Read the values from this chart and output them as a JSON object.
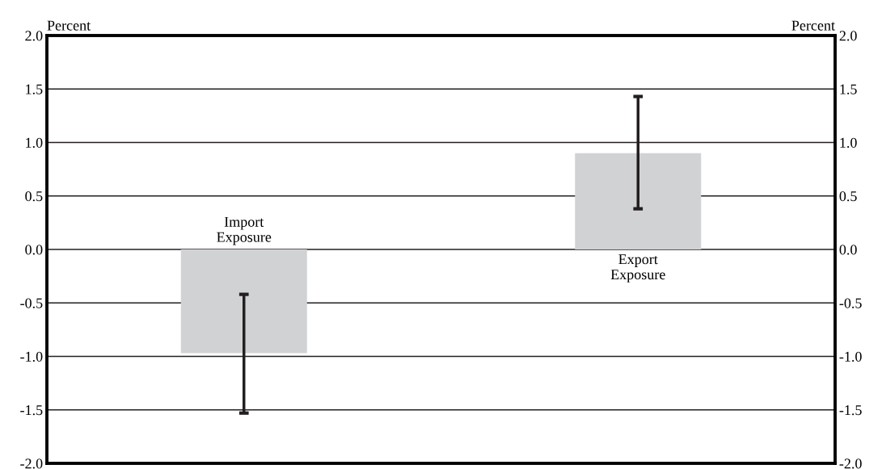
{
  "chart_data": {
    "type": "bar",
    "ylabel": "Percent",
    "y2label": "Percent",
    "categories": [
      "Import\nExposure",
      "Export\nExposure"
    ],
    "values": [
      -0.97,
      0.9
    ],
    "color": "#d1d2d4",
    "errors": [
      [
        -1.53,
        -0.42
      ],
      [
        0.38,
        1.43
      ]
    ],
    "ylim": [
      -2.0,
      2.0
    ],
    "yticks": [
      {
        "value": -2.0,
        "label": "-2.0"
      },
      {
        "value": -1.5,
        "label": "-1.5"
      },
      {
        "value": -1.0,
        "label": "-1.0"
      },
      {
        "value": -0.5,
        "label": "-0.5"
      },
      {
        "value": 0.0,
        "label": "0.0"
      },
      {
        "value": 0.5,
        "label": "0.5"
      },
      {
        "value": 1.0,
        "label": "1.0"
      },
      {
        "value": 1.5,
        "label": "1.5"
      },
      {
        "value": 2.0,
        "label": "2.0"
      }
    ],
    "y2lim": [
      -2.0,
      2.0
    ],
    "y2ticks": [
      {
        "value": -2.0,
        "label": "-2.0"
      },
      {
        "value": -1.5,
        "label": "-1.5"
      },
      {
        "value": -1.0,
        "label": "-1.0"
      },
      {
        "value": -0.5,
        "label": "-0.5"
      },
      {
        "value": 0.0,
        "label": "0.0"
      },
      {
        "value": 0.5,
        "label": "0.5"
      },
      {
        "value": 1.0,
        "label": "1.0"
      },
      {
        "value": 1.5,
        "label": "1.5"
      },
      {
        "value": 2.0,
        "label": "2.0"
      }
    ],
    "grid": "y",
    "tick_labels": "y"
  }
}
